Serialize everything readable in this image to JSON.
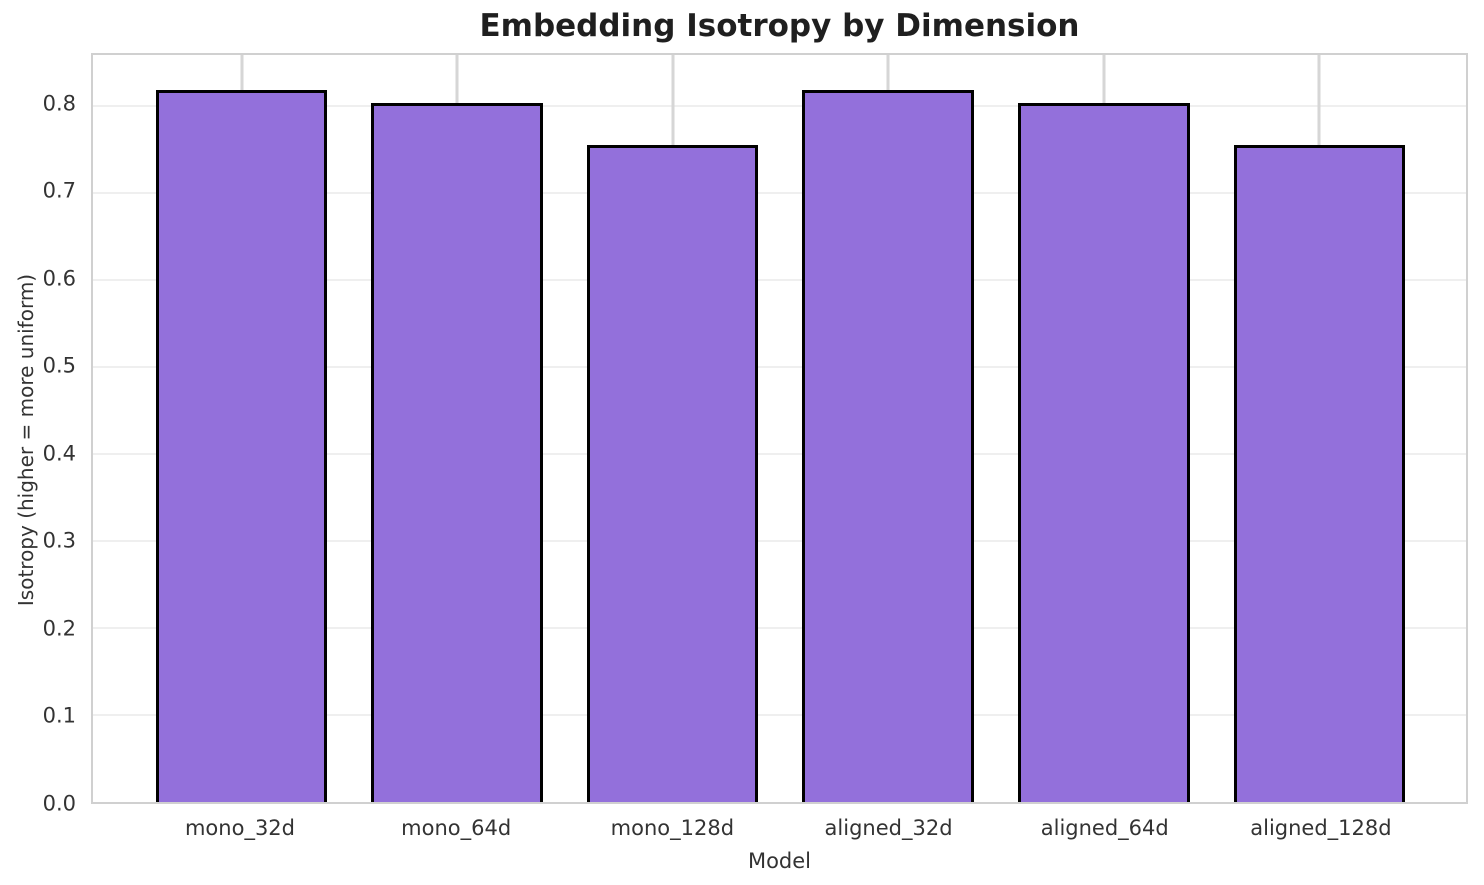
{
  "chart_data": {
    "type": "bar",
    "title": "Embedding Isotropy by Dimension",
    "categories": [
      "mono_32d",
      "mono_64d",
      "mono_128d",
      "aligned_32d",
      "aligned_64d",
      "aligned_128d"
    ],
    "values": [
      0.818,
      0.803,
      0.755,
      0.818,
      0.803,
      0.755
    ],
    "xlabel": "Model",
    "ylabel": "Isotropy (higher = more uniform)",
    "ylim": [
      0,
      0.858
    ],
    "yticks": [
      0.0,
      0.1,
      0.2,
      0.3,
      0.4,
      0.5,
      0.6,
      0.7,
      0.8
    ],
    "grid": true,
    "legend": "none",
    "bar_color": "#9370DB",
    "bar_edge_color": "#000000",
    "title_color": "#1f1f1f",
    "tick_label_color": "#333333"
  }
}
